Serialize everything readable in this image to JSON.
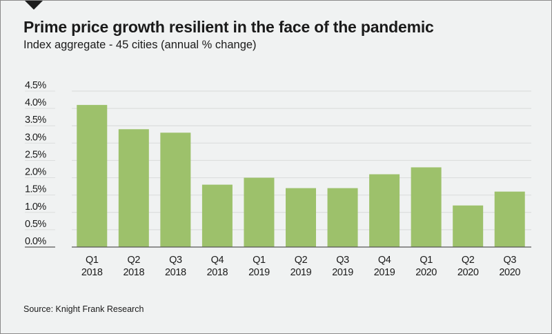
{
  "chart_data": {
    "type": "bar",
    "title": "Prime price growth resilient in the face of the pandemic",
    "subtitle": "Index aggregate - 45 cities (annual % change)",
    "xlabel": "",
    "ylabel": "",
    "categories": [
      [
        "Q1",
        "2018"
      ],
      [
        "Q2",
        "2018"
      ],
      [
        "Q3",
        "2018"
      ],
      [
        "Q4",
        "2018"
      ],
      [
        "Q1",
        "2019"
      ],
      [
        "Q2",
        "2019"
      ],
      [
        "Q3",
        "2019"
      ],
      [
        "Q4",
        "2019"
      ],
      [
        "Q1",
        "2020"
      ],
      [
        "Q2",
        "2020"
      ],
      [
        "Q3",
        "2020"
      ]
    ],
    "values": [
      4.1,
      3.4,
      3.3,
      1.8,
      2.0,
      1.7,
      1.7,
      2.1,
      2.3,
      1.2,
      1.6
    ],
    "ylim": [
      0,
      4.5
    ],
    "yticks": [
      0.0,
      0.5,
      1.0,
      1.5,
      2.0,
      2.5,
      3.0,
      3.5,
      4.0,
      4.5
    ],
    "ytick_labels": [
      "0.0%",
      "0.5%",
      "1.0%",
      "1.5%",
      "2.0%",
      "2.5%",
      "3.0%",
      "3.5%",
      "4.0%",
      "4.5%"
    ],
    "grid": true,
    "legend": "none",
    "bar_color": "#9dc16b",
    "grid_color": "#dcdedd",
    "axis_color": "#555555",
    "source": "Source: Knight Frank Research"
  }
}
